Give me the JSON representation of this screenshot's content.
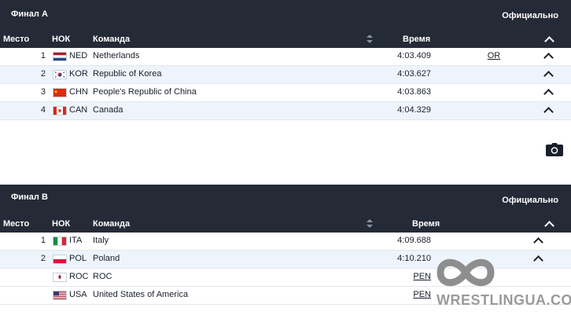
{
  "final_a": {
    "title": "Финал А",
    "status": "Официально",
    "columns": {
      "place": "Место",
      "noc": "НОК",
      "team": "Команда",
      "time": "Время"
    },
    "rows": [
      {
        "rank": "1",
        "flag": "NED",
        "noc": "NED",
        "team": "Netherlands",
        "time": "4:03.409",
        "mark": "OR"
      },
      {
        "rank": "2",
        "flag": "KOR",
        "noc": "KOR",
        "team": "Republic of Korea",
        "time": "4:03.627",
        "mark": ""
      },
      {
        "rank": "3",
        "flag": "CHN",
        "noc": "CHN",
        "team": "People's Republic of China",
        "time": "4:03.863",
        "mark": ""
      },
      {
        "rank": "4",
        "flag": "CAN",
        "noc": "CAN",
        "team": "Canada",
        "time": "4:04.329",
        "mark": ""
      }
    ]
  },
  "final_b": {
    "title": "Финал B",
    "status": "Официально",
    "columns": {
      "place": "Место",
      "noc": "НОК",
      "team": "Команда",
      "time": "Время"
    },
    "rows": [
      {
        "rank": "1",
        "flag": "ITA",
        "noc": "ITA",
        "team": "Italy",
        "time": "4:09.688",
        "mark": ""
      },
      {
        "rank": "2",
        "flag": "POL",
        "noc": "POL",
        "team": "Poland",
        "time": "4:10.210",
        "mark": ""
      },
      {
        "rank": "",
        "flag": "ROC",
        "noc": "ROC",
        "team": "ROC",
        "time": "PEN",
        "mark": ""
      },
      {
        "rank": "",
        "flag": "USA",
        "noc": "USA",
        "team": "United States of America",
        "time": "PEN",
        "mark": ""
      }
    ]
  },
  "icons": {
    "camera": "camera-icon",
    "chevron": "chevron-up-icon",
    "sort": "sort-icon"
  },
  "watermark": {
    "text": "WRESTLINGUA.COM"
  },
  "colors": {
    "header_bg": "#242a36",
    "row_alt": "#eef4fb",
    "text": "#1a1f2b"
  }
}
